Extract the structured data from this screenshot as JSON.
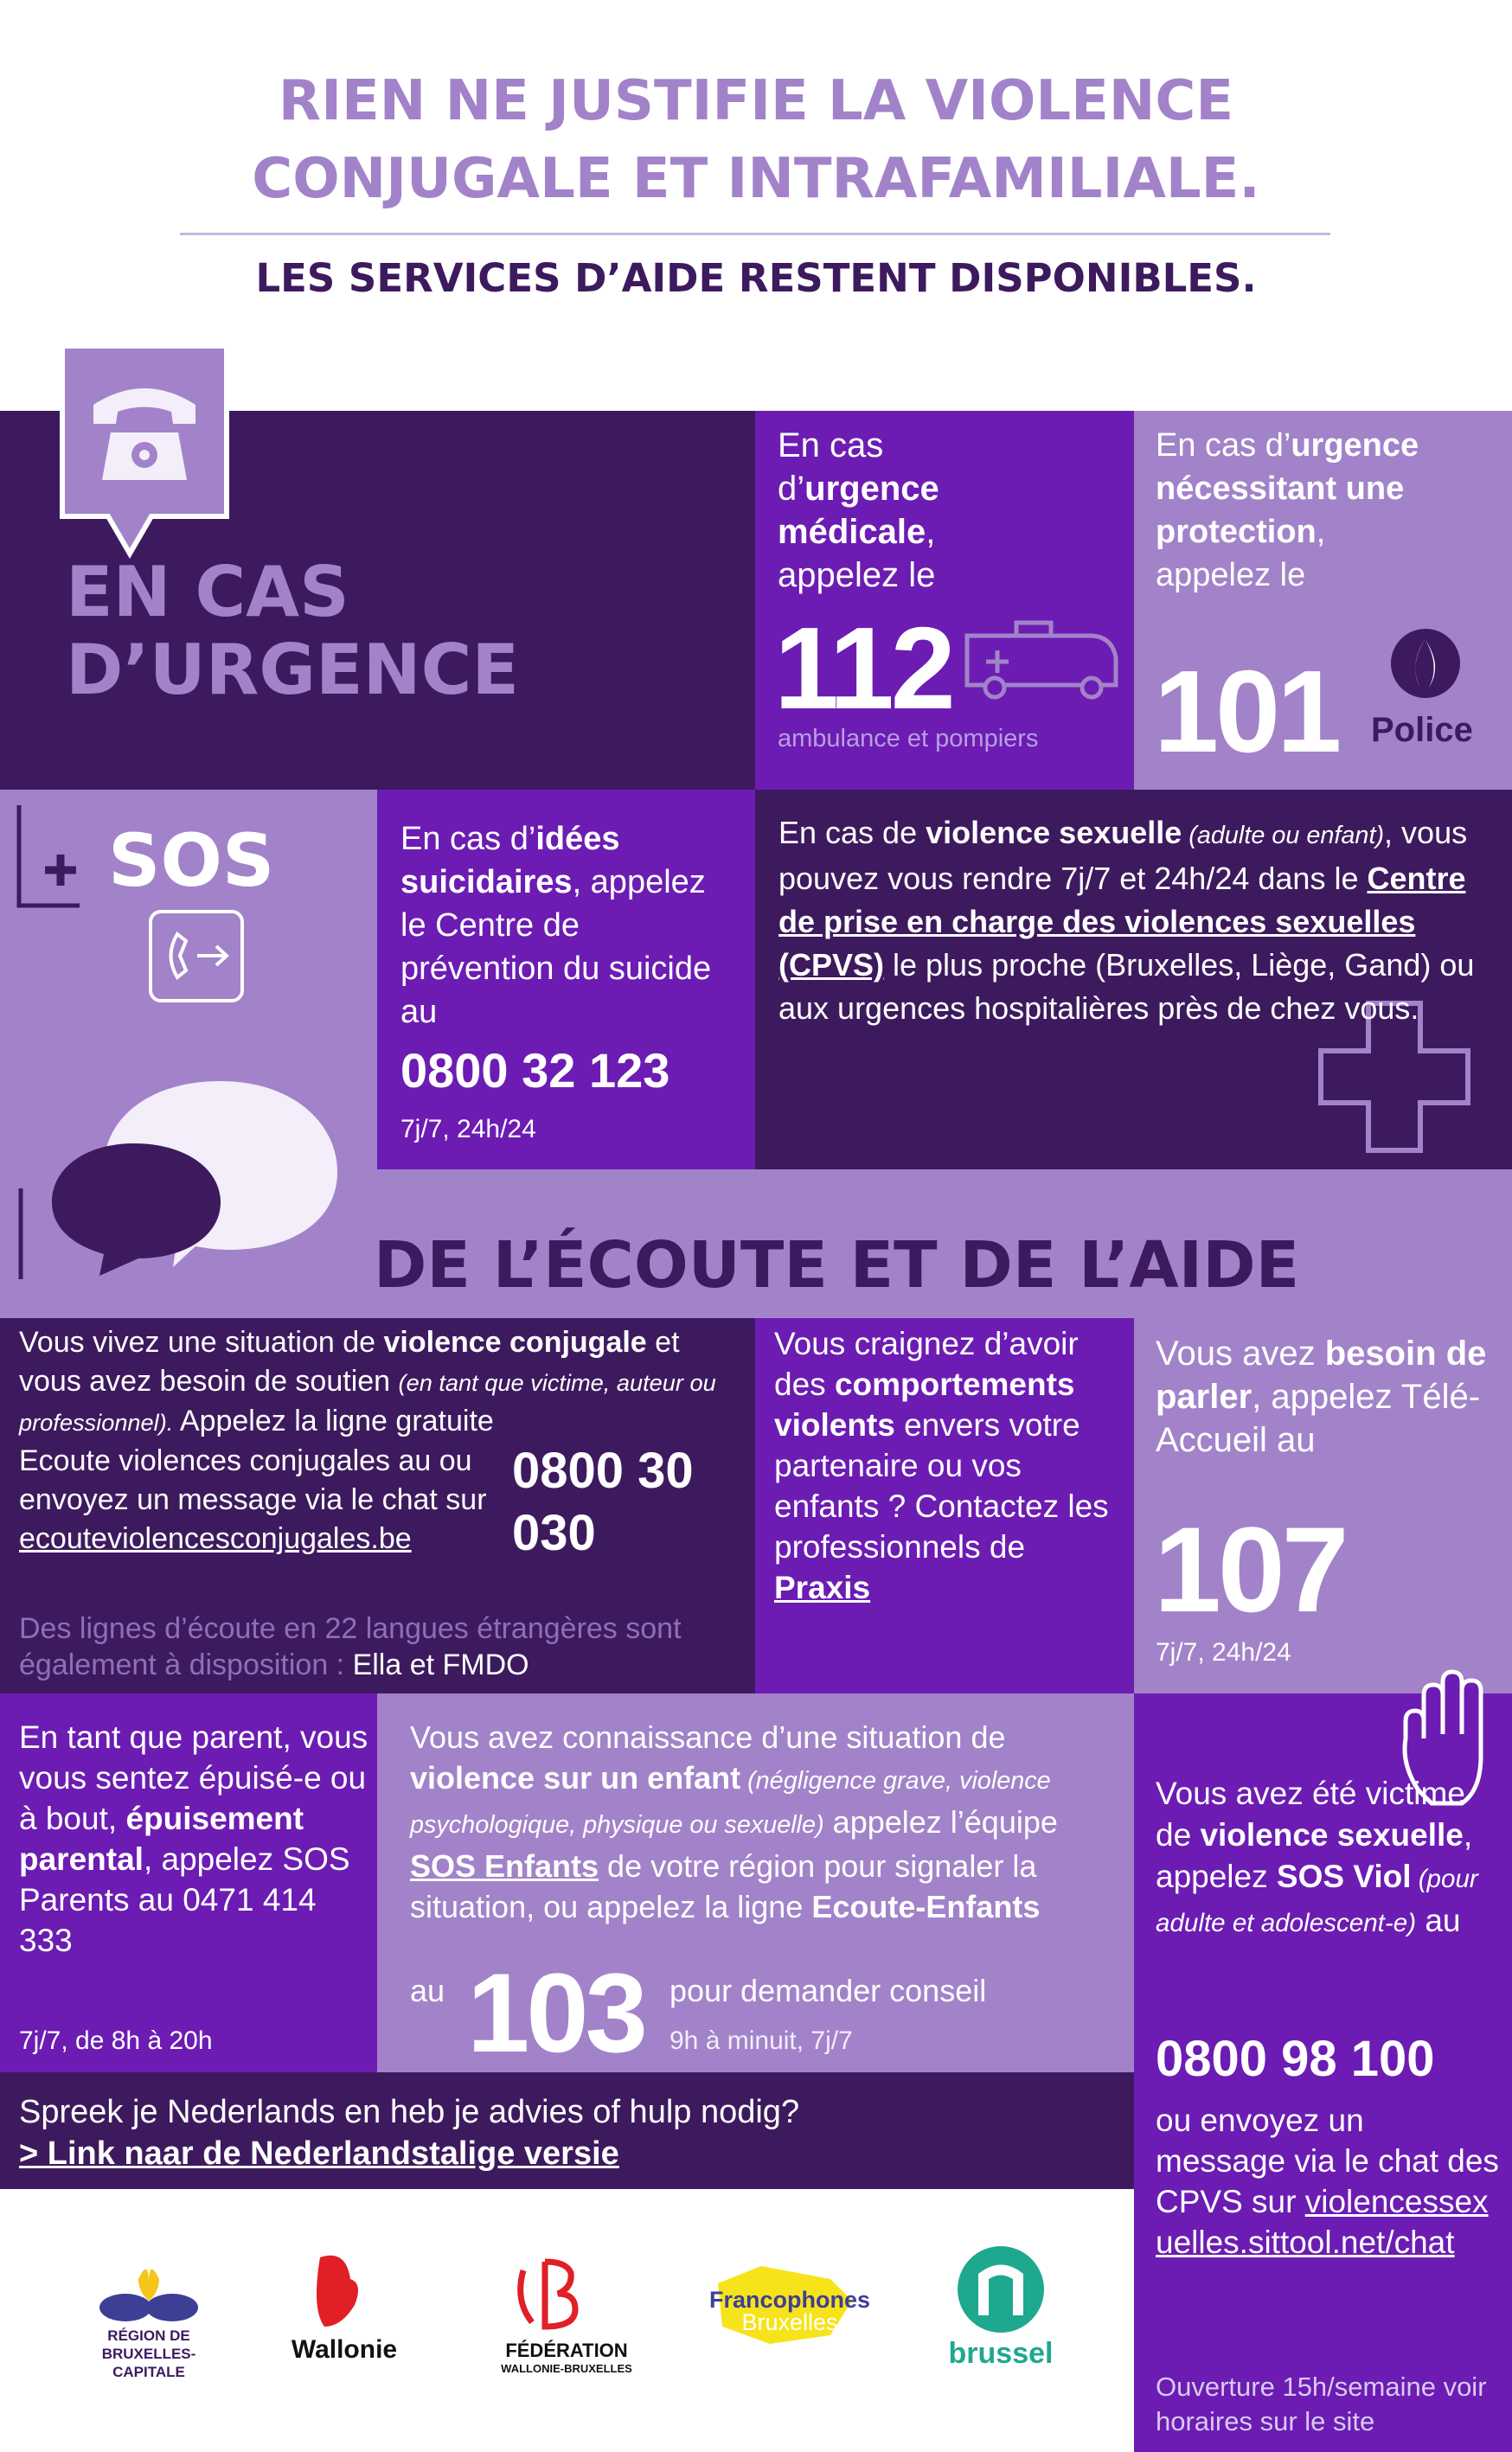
{
  "header": {
    "title_line1": "RIEN NE JUSTIFIE LA VIOLENCE",
    "title_line2": "CONJUGALE ET INTRAFAMILIALE.",
    "subtitle": "LES SERVICES D’AIDE RESTENT DISPONIBLES."
  },
  "urgence": {
    "heading_line1": "EN CAS",
    "heading_line2": "D’URGENCE",
    "medical": {
      "parts": [
        "En cas d’",
        "urgence médicale",
        ", appelez le"
      ],
      "number": "112",
      "caption": "ambulance et pompiers"
    },
    "protection": {
      "parts": [
        "En cas d’",
        "urgence nécessitant une protection",
        ", appelez le"
      ],
      "number": "101",
      "badge": "Police"
    },
    "sos": "SOS",
    "suicide": {
      "parts": [
        "En cas d’",
        "idées suicidaires",
        ", appelez le Centre de prévention du suicide au"
      ],
      "number": "0800 32 123",
      "caption": "7j/7, 24h/24"
    },
    "cpvs": {
      "parts": [
        "En cas de ",
        "violence sexuelle",
        " (adulte ou enfant)",
        ", vous pouvez vous rendre 7j/7 et 24h/24 dans le ",
        "Centre de prise en charge des violences sexuelles (CPVS)",
        " le plus proche (Bruxelles, Liège, Gand) ou aux urgences hospitalières près de chez vous."
      ]
    }
  },
  "ecoute": {
    "heading": "DE L’ÉCOUTE ET DE L’AIDE",
    "conjugale": {
      "parts": [
        "Vous vivez une situation de ",
        "violence conjugale",
        " et vous avez besoin de soutien ",
        "(en tant que victime, auteur ou professionnel).",
        " Appelez la ligne gratuite Ecoute violences conjugales au ou envoyez un message via le chat sur ",
        "ecouteviolencesconjugales.be"
      ],
      "number": "0800 30 030",
      "note": "Des lignes d’écoute en 22 langues étrangères sont également à disposition : ",
      "note_names": "Ella et FMDO"
    },
    "praxis": {
      "parts": [
        "Vous craignez d’avoir des ",
        "comportements violents",
        " envers votre partenaire ou vos enfants ? Contactez les professionnels de ",
        "Praxis"
      ]
    },
    "tele_accueil": {
      "parts": [
        "Vous avez ",
        "besoin de parler",
        ", appelez Télé-Accueil au"
      ],
      "number": "107",
      "caption": "7j/7, 24h/24"
    },
    "parents": {
      "parts": [
        "En tant que parent, vous vous sentez épuisé-e ou à bout, ",
        "épuisement parental",
        ", appelez SOS Parents au 0471 414 333"
      ],
      "caption": "7j/7, de 8h à 20h"
    },
    "enfants": {
      "parts": [
        "Vous avez connaissance d’une situation de ",
        "violence sur un enfant",
        " (négligence grave, violence psychologique, physique ou sexuelle)",
        " appelez l’équipe ",
        "SOS Enfants",
        " de votre région pour signaler la situation, ou appelez la ligne ",
        "Ecoute-Enfants"
      ],
      "before_number": "au",
      "number": "103",
      "after_number": "pour demander conseil",
      "caption": "9h à minuit, 7j/7"
    },
    "sos_viol": {
      "parts": [
        "Vous avez été victime de ",
        "violence sexuelle",
        ", appelez ",
        "SOS Viol",
        " (pour adulte et adolescent-e)",
        " au"
      ],
      "number": "0800 98 100",
      "chat_parts": [
        "ou envoyez un message via le chat des CPVS sur ",
        "violencessexuelles.sittool.net/chat"
      ],
      "hours": "Ouverture 15h/semaine voir horaires sur le site"
    },
    "nederlands": {
      "question": "Spreek je Nederlands en heb je advies of hulp nodig?",
      "link": "> Link naar de Nederlandstalige versie"
    }
  },
  "logos": {
    "region": [
      "RÉGION DE",
      "BRUXELLES-",
      "CAPITALE"
    ],
    "wallonie": "Wallonie",
    "federation": [
      "FÉDÉRATION",
      "WALLONIE-BRUXELLES"
    ],
    "francophones": [
      "Francophones",
      "Bruxelles"
    ],
    "brussel": "brussel"
  }
}
